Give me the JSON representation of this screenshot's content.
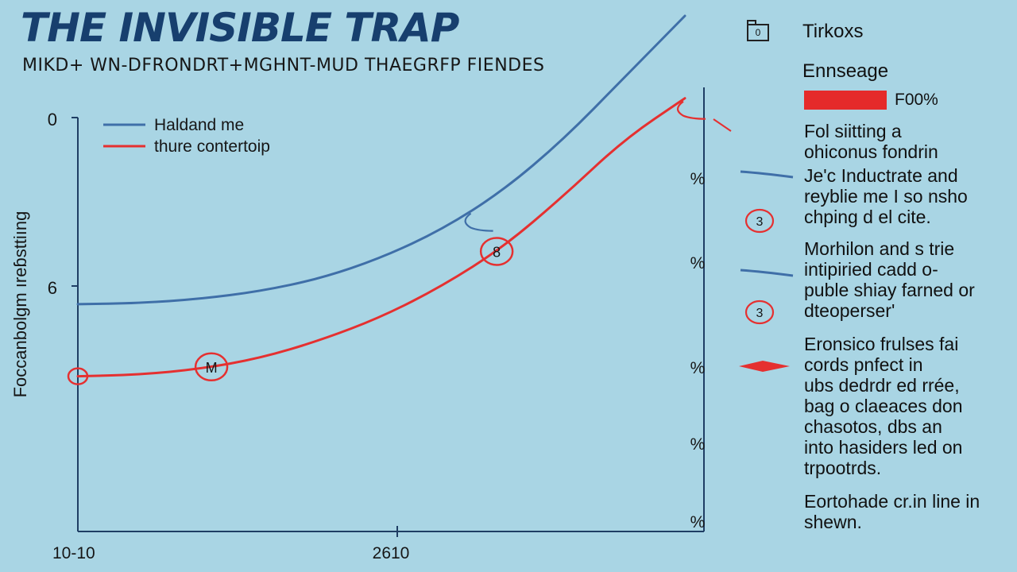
{
  "header": {
    "title": "THE INVISIBLE TRAP",
    "subtitle": "MIKD+ WN-DFRONDRT+MGHNT-MUD THAEGRFP FIENDES"
  },
  "sidebar": {
    "title": "Tirkoxs",
    "folder_icon": "folder-icon",
    "folder_glyph": "0",
    "heading": "Ennseage",
    "bar_label": "F00%",
    "bar_color": "#e52a2a",
    "paragraphs": [
      {
        "lines": [
          "Fol siitting a",
          "ohiconus fondrin"
        ]
      },
      {
        "lines": [
          "Je'c Inductrate and",
          "reyblie me I so nsho",
          "chping d el cite."
        ]
      },
      {
        "lines": [
          "Morhilon and s trie",
          "intipiried cadd o-",
          "puble shiay farned or",
          "dteoperser'"
        ]
      },
      {
        "lines": [
          "Eronsico frulses fai",
          "cords pnfect in",
          "ubs dedrdr ed rrée,",
          "bag o claeaces don",
          "chasotos, dbs an",
          "into hasiders led on",
          "trpootrds."
        ]
      },
      {
        "lines": [
          "Eortohade cr.in line in",
          "shewn."
        ]
      }
    ],
    "markers": [
      {
        "kind": "blue-line",
        "icon": "blue-line-marker-icon"
      },
      {
        "kind": "circle",
        "icon": "circled-number-icon",
        "label": "3"
      },
      {
        "kind": "blue-line",
        "icon": "blue-line-marker-icon"
      },
      {
        "kind": "circle",
        "icon": "circled-number-icon",
        "label": "3"
      },
      {
        "kind": "red-arrow",
        "icon": "red-arrow-marker-icon"
      }
    ]
  },
  "chart_data": {
    "type": "line",
    "title": "THE INVISIBLE TRAP",
    "subtitle": "MIKD+ WN-DFRONDRT+MGHNT-MUD THAEGRFP FIENDES",
    "ylabel": "Foccanbolgm ıreɓsttiıng",
    "xlabel": "",
    "x_tick_labels": [
      "10-10",
      "2610"
    ],
    "y_tick_labels": [
      "0",
      "6"
    ],
    "right_tick_labels": [
      "%",
      "%",
      "%",
      "%",
      "%"
    ],
    "x": [
      0,
      10,
      20,
      30,
      40,
      50,
      60,
      70,
      80,
      90,
      100
    ],
    "ylim": [
      0,
      100
    ],
    "series": [
      {
        "name": "Haldand me",
        "color": "#3f6fa8",
        "values": [
          44,
          44.2,
          45,
          46.5,
          49,
          53,
          58.5,
          66,
          76,
          88,
          100
        ]
      },
      {
        "name": "thure contertoip",
        "color": "#e53030",
        "values": [
          30,
          30.3,
          31.4,
          33.5,
          37,
          41.5,
          47.5,
          55,
          65,
          76,
          84
        ]
      }
    ],
    "annotations": [
      {
        "series": 0,
        "x": 65,
        "kind": "hook"
      },
      {
        "series": 1,
        "x": 0,
        "kind": "circle",
        "label": ""
      },
      {
        "series": 1,
        "x": 22,
        "kind": "circle",
        "label": "M"
      },
      {
        "series": 1,
        "x": 69,
        "kind": "circle",
        "label": "8"
      },
      {
        "series": 1,
        "x": 100,
        "kind": "hook"
      }
    ],
    "legend": "top-left",
    "grid": false
  }
}
